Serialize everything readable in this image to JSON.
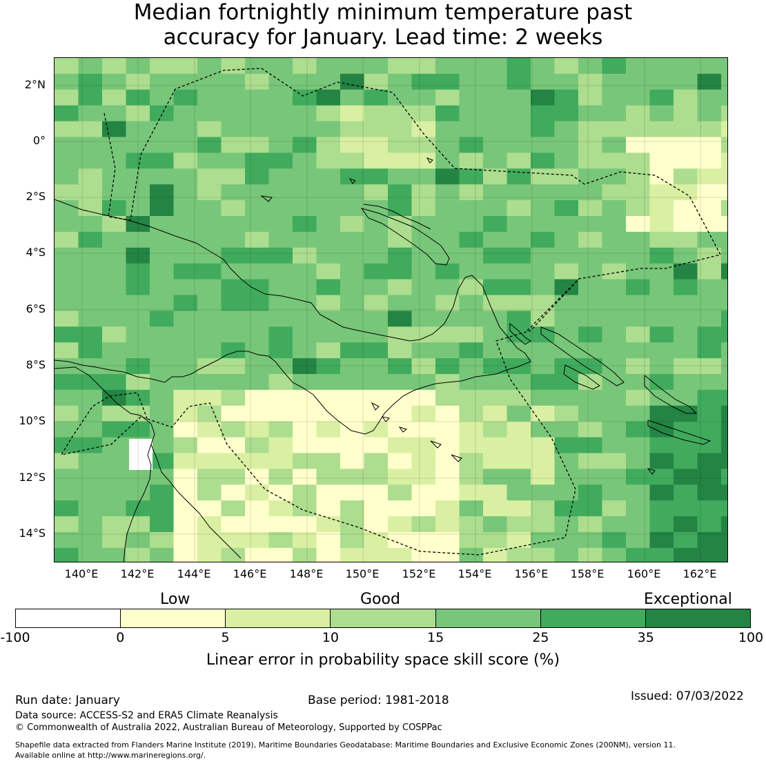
{
  "title_line1": "Median fortnightly minimum temperature past",
  "title_line2": "accuracy for January. Lead time: 2 weeks",
  "map": {
    "lon_ticks": [
      "140°E",
      "142°E",
      "144°E",
      "146°E",
      "148°E",
      "150°E",
      "152°E",
      "154°E",
      "156°E",
      "158°E",
      "160°E",
      "162°E"
    ],
    "lat_ticks": [
      "2°N",
      "0°",
      "2°S",
      "4°S",
      "6°S",
      "8°S",
      "10°S",
      "12°S",
      "14°S"
    ],
    "colors": {
      "white": "#ffffff",
      "c0_5": "#ffffcc",
      "c5_10": "#d9f0a3",
      "c10_15": "#addd8e",
      "c15_25": "#78c679",
      "c25_35": "#41ab5d",
      "c35_100": "#238443"
    }
  },
  "colorbar": {
    "categories": [
      "Low",
      "Good",
      "Exceptional"
    ],
    "ticks": [
      "-100",
      "0",
      "5",
      "10",
      "15",
      "25",
      "35",
      "100"
    ],
    "segment_colors": [
      "#ffffff",
      "#ffffcc",
      "#d9f0a3",
      "#addd8e",
      "#78c679",
      "#41ab5d",
      "#238443"
    ],
    "label": "Linear error in probability space skill score (%)"
  },
  "footer": {
    "run_date": "Run date: January",
    "base_period": "Base period: 1981-2018",
    "issued": "Issued: 07/03/2022",
    "data_source": "Data source: ACCESS-S2 and ERA5 Climate Reanalysis",
    "copyright": "© Commonwealth of Australia 2022, Australian Bureau of Meteorology, Supported by COSPPac",
    "shapefile_line1": "Shapefile data extracted from Flanders Marine Institute (2019), Maritime Boundaries Geodatabase: Maritime Boundaries and Exclusive Economic Zones (200NM), version 11.",
    "shapefile_line2": "Available online at http://www.marineregions.org/."
  }
}
